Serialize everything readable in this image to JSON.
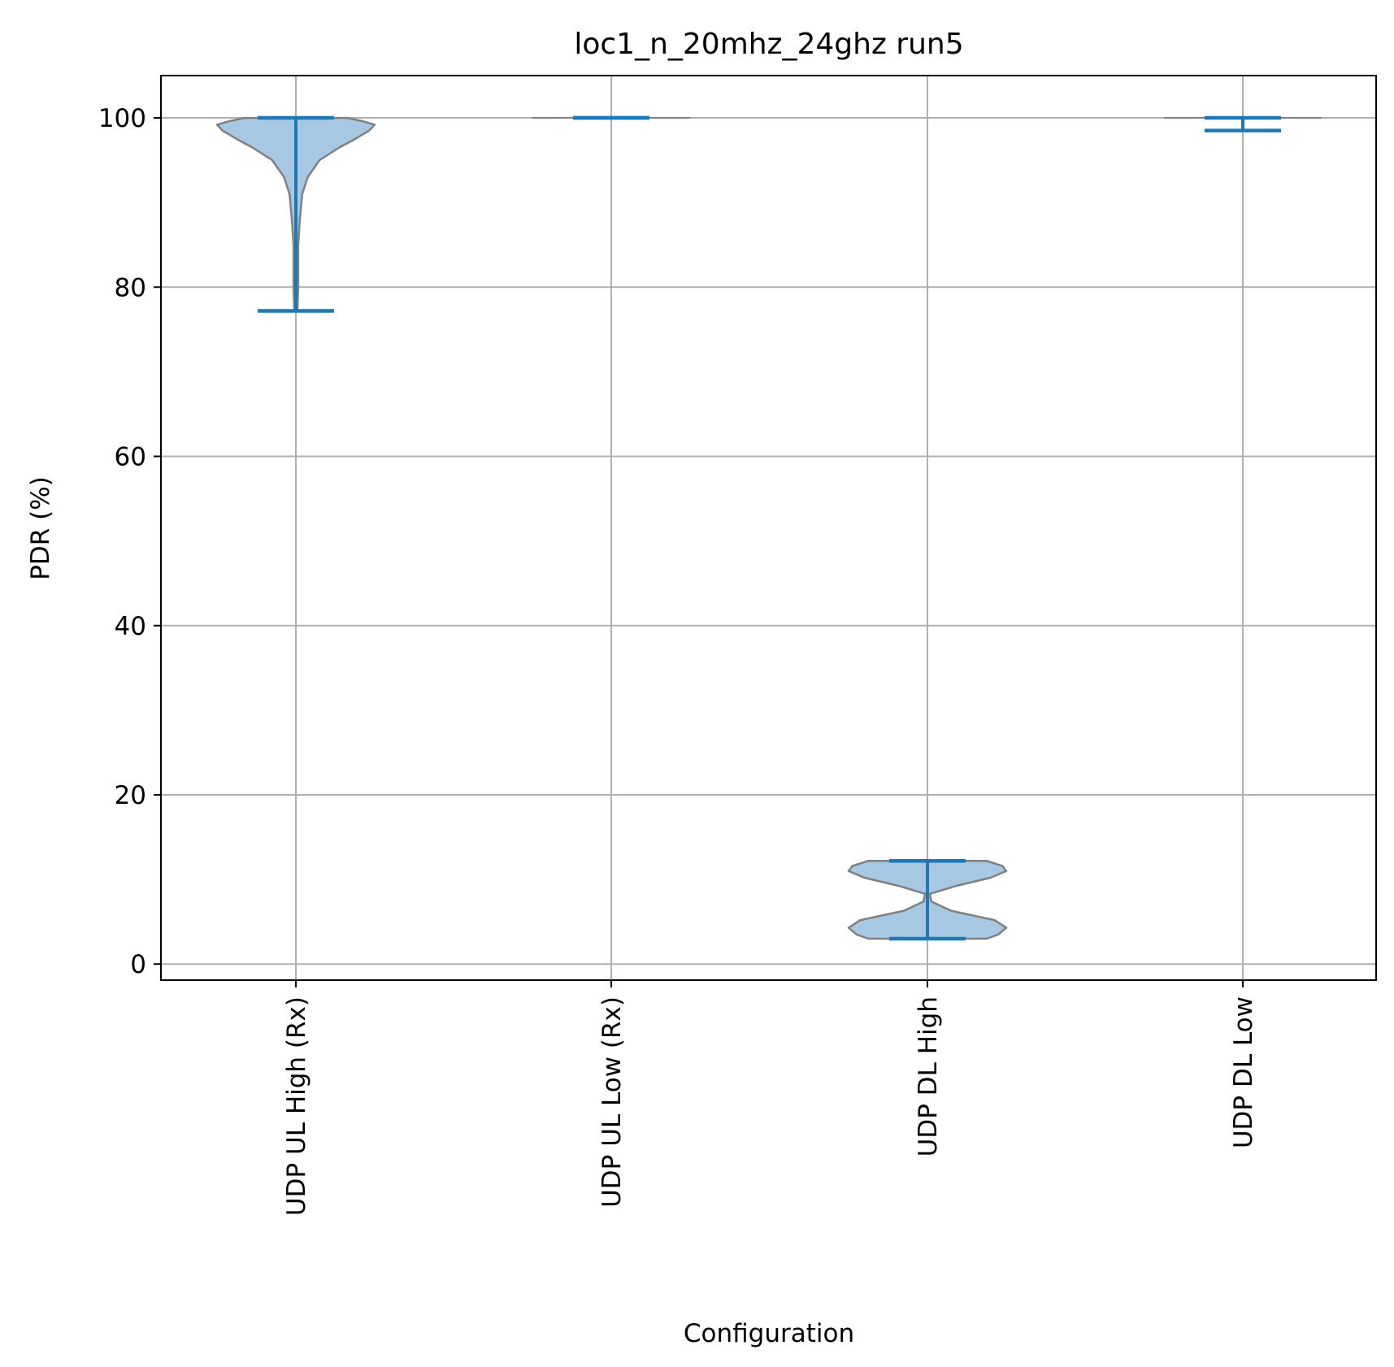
{
  "chart_data": {
    "type": "violin",
    "title": "loc1_n_20mhz_24ghz run5",
    "xlabel": "Configuration",
    "ylabel": "PDR (%)",
    "ylim": [
      -1.9,
      105
    ],
    "yticks": [
      0,
      20,
      40,
      60,
      80,
      100
    ],
    "grid": true,
    "categories": [
      "UDP UL High (Rx)",
      "UDP UL Low (Rx)",
      "UDP DL High",
      "UDP DL Low"
    ],
    "series": [
      {
        "min": 77.2,
        "max": 100,
        "density": [
          [
            77.2,
            0.02
          ],
          [
            80,
            0.03
          ],
          [
            85,
            0.03
          ],
          [
            88,
            0.05
          ],
          [
            91,
            0.08
          ],
          [
            93,
            0.15
          ],
          [
            95,
            0.3
          ],
          [
            96.5,
            0.55
          ],
          [
            97.5,
            0.75
          ],
          [
            98.5,
            0.93
          ],
          [
            99.2,
            1.0
          ],
          [
            99.6,
            0.85
          ],
          [
            100,
            0.65
          ]
        ]
      },
      {
        "min": 100,
        "max": 100,
        "density": []
      },
      {
        "min": 3.0,
        "max": 12.2,
        "density": [
          [
            3.0,
            0.75
          ],
          [
            3.5,
            0.9
          ],
          [
            4.3,
            1.0
          ],
          [
            5.2,
            0.85
          ],
          [
            6.3,
            0.3
          ],
          [
            7.4,
            0.05
          ],
          [
            8.3,
            0.03
          ],
          [
            9.2,
            0.35
          ],
          [
            10.2,
            0.8
          ],
          [
            11.0,
            1.0
          ],
          [
            11.6,
            0.95
          ],
          [
            12.2,
            0.75
          ]
        ]
      },
      {
        "min": 98.5,
        "max": 100,
        "density": []
      }
    ],
    "colors": {
      "body_fill": "#a6c8e2",
      "body_edge": "#808080",
      "whisker": "#1f77b4",
      "grid": "#b0b0b0"
    }
  }
}
